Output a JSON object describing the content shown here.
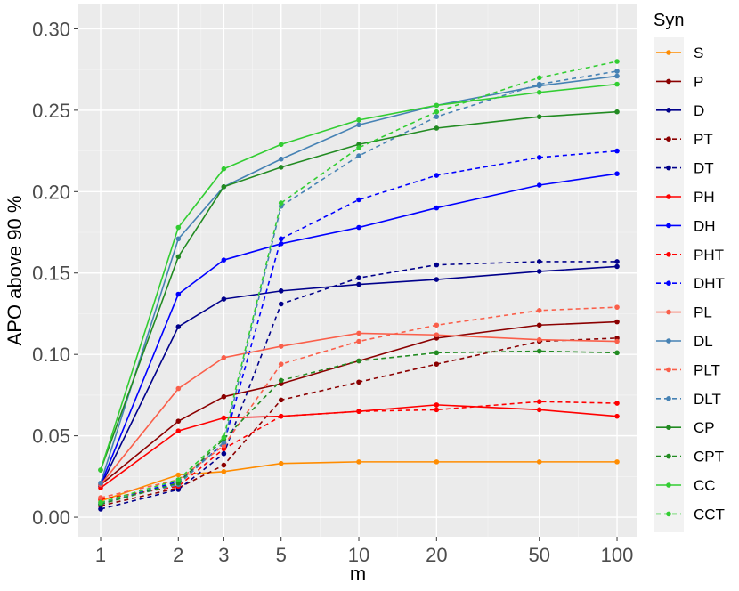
{
  "chart_data": {
    "type": "line",
    "xlabel": "m",
    "ylabel": "APO above 90 %",
    "x_scale": "log",
    "x": [
      1,
      2,
      3,
      5,
      10,
      20,
      50,
      100
    ],
    "x_tick_labels": [
      "1",
      "2",
      "3",
      "5",
      "10",
      "20",
      "50",
      "100"
    ],
    "ylim": [
      -0.012,
      0.315
    ],
    "y_ticks": [
      0.0,
      0.05,
      0.1,
      0.15,
      0.2,
      0.25,
      0.3
    ],
    "y_tick_labels": [
      "0.00",
      "0.05",
      "0.10",
      "0.15",
      "0.20",
      "0.25",
      "0.30"
    ],
    "grid": true,
    "legend": {
      "title": "Syn",
      "position": "right"
    },
    "series": [
      {
        "name": "S",
        "color": "#FF8C00",
        "dash": "solid",
        "values": [
          0.01,
          0.026,
          0.028,
          0.033,
          0.034,
          0.034,
          0.034,
          0.034
        ]
      },
      {
        "name": "P",
        "color": "#8B0000",
        "dash": "solid",
        "values": [
          0.02,
          0.059,
          0.074,
          0.082,
          0.096,
          0.11,
          0.118,
          0.12
        ]
      },
      {
        "name": "D",
        "color": "#00008B",
        "dash": "solid",
        "values": [
          0.019,
          0.117,
          0.134,
          0.139,
          0.143,
          0.146,
          0.151,
          0.154
        ]
      },
      {
        "name": "PT",
        "color": "#8B0000",
        "dash": "dashed",
        "values": [
          0.007,
          0.018,
          0.032,
          0.072,
          0.083,
          0.094,
          0.108,
          0.11
        ]
      },
      {
        "name": "DT",
        "color": "#00008B",
        "dash": "dashed",
        "values": [
          0.005,
          0.017,
          0.039,
          0.131,
          0.147,
          0.155,
          0.157,
          0.157
        ]
      },
      {
        "name": "PH",
        "color": "#FF0000",
        "dash": "solid",
        "values": [
          0.018,
          0.053,
          0.061,
          0.062,
          0.065,
          0.069,
          0.066,
          0.062
        ]
      },
      {
        "name": "DH",
        "color": "#0000FF",
        "dash": "solid",
        "values": [
          0.02,
          0.137,
          0.158,
          0.168,
          0.178,
          0.19,
          0.204,
          0.211
        ]
      },
      {
        "name": "PHT",
        "color": "#FF0000",
        "dash": "dashed",
        "values": [
          0.011,
          0.019,
          0.042,
          0.062,
          0.065,
          0.066,
          0.071,
          0.07
        ]
      },
      {
        "name": "DHT",
        "color": "#0000FF",
        "dash": "dashed",
        "values": [
          0.008,
          0.022,
          0.045,
          0.171,
          0.195,
          0.21,
          0.221,
          0.225
        ]
      },
      {
        "name": "PL",
        "color": "#FA5F4A",
        "dash": "solid",
        "values": [
          0.02,
          0.079,
          0.098,
          0.105,
          0.113,
          0.112,
          0.109,
          0.108
        ]
      },
      {
        "name": "DL",
        "color": "#4682B4",
        "dash": "solid",
        "values": [
          0.021,
          0.171,
          0.203,
          0.22,
          0.241,
          0.253,
          0.265,
          0.271
        ]
      },
      {
        "name": "PLT",
        "color": "#FA5F4A",
        "dash": "dashed",
        "values": [
          0.012,
          0.023,
          0.044,
          0.094,
          0.108,
          0.118,
          0.127,
          0.129
        ]
      },
      {
        "name": "DLT",
        "color": "#4682B4",
        "dash": "dashed",
        "values": [
          0.009,
          0.02,
          0.046,
          0.191,
          0.222,
          0.246,
          0.266,
          0.274
        ]
      },
      {
        "name": "CP",
        "color": "#228B22",
        "dash": "solid",
        "values": [
          0.029,
          0.16,
          0.203,
          0.215,
          0.229,
          0.239,
          0.246,
          0.249
        ]
      },
      {
        "name": "CPT",
        "color": "#228B22",
        "dash": "dashed",
        "values": [
          0.008,
          0.021,
          0.048,
          0.084,
          0.096,
          0.101,
          0.102,
          0.101
        ]
      },
      {
        "name": "CC",
        "color": "#32CD32",
        "dash": "solid",
        "values": [
          0.029,
          0.178,
          0.214,
          0.229,
          0.244,
          0.253,
          0.261,
          0.266
        ]
      },
      {
        "name": "CCT",
        "color": "#32CD32",
        "dash": "dashed",
        "values": [
          0.009,
          0.023,
          0.049,
          0.193,
          0.227,
          0.249,
          0.27,
          0.28
        ]
      }
    ]
  }
}
